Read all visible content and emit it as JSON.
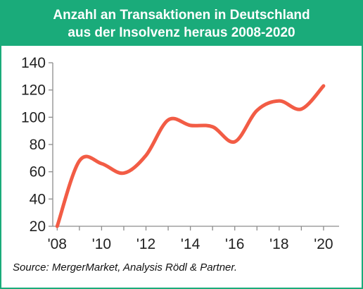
{
  "header": {
    "title_line1": "Anzahl an Transaktionen in Deutschland",
    "title_line2": "aus der Insolvenz heraus 2008-2020"
  },
  "source": "Source: MergerMarket, Analysis Rödl & Partner.",
  "colors": {
    "accent": "#1aab7a",
    "line": "#f25c45"
  },
  "chart_data": {
    "type": "line",
    "title": "Anzahl an Transaktionen in Deutschland aus der Insolvenz heraus 2008-2020",
    "xlabel": "",
    "ylabel": "",
    "x": [
      2008,
      2009,
      2010,
      2011,
      2012,
      2013,
      2014,
      2015,
      2016,
      2017,
      2018,
      2019,
      2020
    ],
    "xticks": [
      2008,
      2010,
      2012,
      2014,
      2016,
      2018,
      2020
    ],
    "xtick_labels": [
      "'08",
      "'10",
      "'12",
      "'14",
      "'16",
      "'18",
      "'20"
    ],
    "series": [
      {
        "values": [
          20,
          68,
          66,
          59,
          72,
          98,
          94,
          93,
          82,
          105,
          112,
          106,
          123
        ]
      }
    ],
    "xlim": [
      2007.8,
      2020.7
    ],
    "ylim": [
      20,
      140
    ],
    "yticks": [
      20,
      40,
      60,
      80,
      100,
      120,
      140
    ],
    "grid": false,
    "legend": "none"
  }
}
